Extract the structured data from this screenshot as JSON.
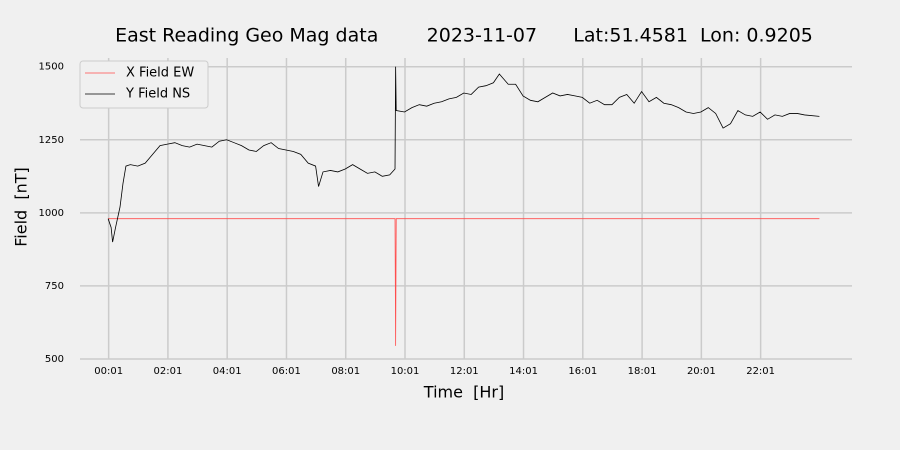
{
  "chart_data": {
    "type": "line",
    "title": "East Reading Geo Mag data        2023-11-07      Lat:51.4581  Lon: 0.9205",
    "x_label": "Time  [Hr]",
    "y_label": "Field  [nT]",
    "xlim": [
      -0.95,
      25.1
    ],
    "ylim": [
      500,
      1540
    ],
    "xticks": [
      {
        "value": 0.0167,
        "label": "00:01"
      },
      {
        "value": 2.0167,
        "label": "02:01"
      },
      {
        "value": 4.0167,
        "label": "04:01"
      },
      {
        "value": 6.0167,
        "label": "06:01"
      },
      {
        "value": 8.0167,
        "label": "08:01"
      },
      {
        "value": 10.0167,
        "label": "10:01"
      },
      {
        "value": 12.0167,
        "label": "12:01"
      },
      {
        "value": 14.0167,
        "label": "14:01"
      },
      {
        "value": 16.0167,
        "label": "16:01"
      },
      {
        "value": 18.0167,
        "label": "18:01"
      },
      {
        "value": 20.0167,
        "label": "20:01"
      },
      {
        "value": 22.0167,
        "label": "22:01"
      }
    ],
    "yticks": [
      500,
      750,
      1000,
      1250,
      1500
    ],
    "grid": true,
    "legend": "upper left",
    "series": [
      {
        "name": "X Field EW",
        "color": "#ff4d4d",
        "x": [
          0.0,
          9.68,
          9.7,
          9.72,
          24.0
        ],
        "values": [
          980,
          980,
          545,
          980,
          980
        ]
      },
      {
        "name": "Y Field NS",
        "color": "#000000",
        "x": [
          0.0,
          0.1,
          0.15,
          0.25,
          0.4,
          0.5,
          0.6,
          0.75,
          1.0,
          1.25,
          1.5,
          1.75,
          2.0,
          2.25,
          2.5,
          2.75,
          3.0,
          3.25,
          3.5,
          3.75,
          4.0,
          4.25,
          4.5,
          4.75,
          5.0,
          5.25,
          5.5,
          5.75,
          6.0,
          6.25,
          6.5,
          6.75,
          7.0,
          7.1,
          7.25,
          7.5,
          7.75,
          8.0,
          8.25,
          8.5,
          8.75,
          9.0,
          9.25,
          9.5,
          9.68,
          9.7,
          9.72,
          10.0,
          10.25,
          10.5,
          10.75,
          11.0,
          11.25,
          11.5,
          11.75,
          12.0,
          12.25,
          12.5,
          12.75,
          13.0,
          13.2,
          13.5,
          13.75,
          14.0,
          14.25,
          14.5,
          14.75,
          15.0,
          15.25,
          15.5,
          15.75,
          16.0,
          16.25,
          16.5,
          16.75,
          17.0,
          17.25,
          17.5,
          17.75,
          18.0,
          18.25,
          18.5,
          18.75,
          19.0,
          19.25,
          19.5,
          19.75,
          20.0,
          20.25,
          20.5,
          20.75,
          21.0,
          21.25,
          21.5,
          21.75,
          22.0,
          22.25,
          22.5,
          22.75,
          23.0,
          23.25,
          23.5,
          24.0
        ],
        "values": [
          980,
          950,
          900,
          950,
          1020,
          1100,
          1160,
          1165,
          1160,
          1170,
          1200,
          1230,
          1235,
          1240,
          1230,
          1225,
          1235,
          1230,
          1225,
          1245,
          1250,
          1240,
          1230,
          1215,
          1210,
          1230,
          1240,
          1220,
          1215,
          1210,
          1200,
          1170,
          1160,
          1090,
          1140,
          1145,
          1140,
          1150,
          1165,
          1150,
          1135,
          1140,
          1125,
          1130,
          1150,
          1500,
          1350,
          1345,
          1360,
          1370,
          1365,
          1375,
          1380,
          1390,
          1395,
          1410,
          1405,
          1430,
          1435,
          1445,
          1475,
          1440,
          1440,
          1400,
          1385,
          1380,
          1395,
          1410,
          1400,
          1405,
          1400,
          1395,
          1375,
          1385,
          1370,
          1370,
          1395,
          1405,
          1375,
          1415,
          1380,
          1395,
          1375,
          1370,
          1360,
          1345,
          1340,
          1345,
          1360,
          1340,
          1290,
          1305,
          1350,
          1335,
          1330,
          1345,
          1320,
          1335,
          1330,
          1340,
          1340,
          1335,
          1330
        ]
      }
    ]
  }
}
